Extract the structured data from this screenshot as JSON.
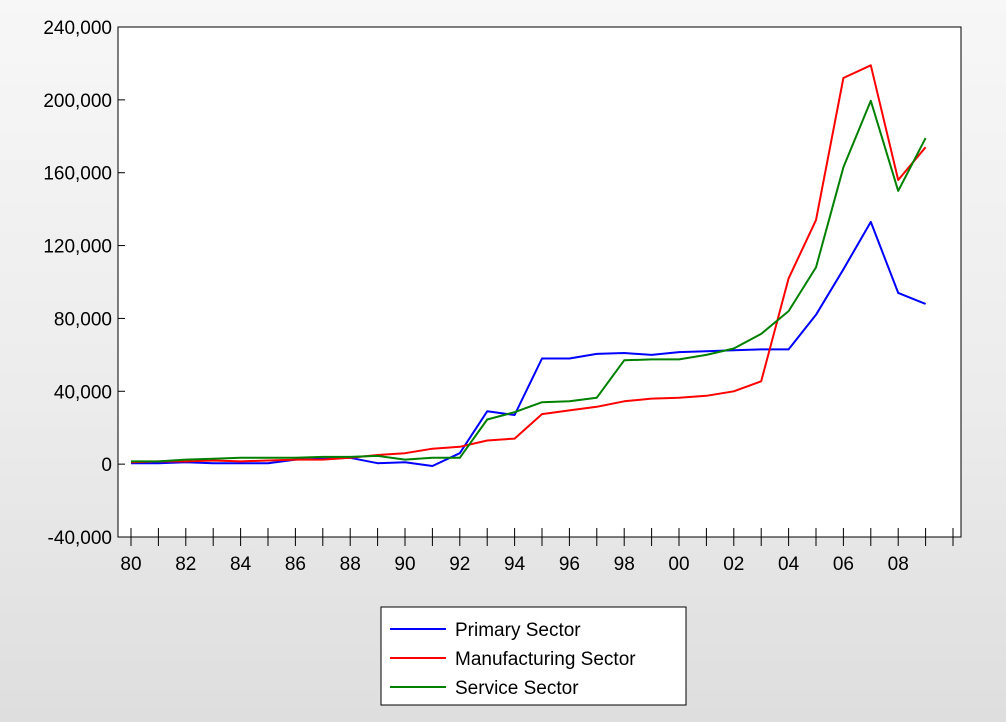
{
  "chart_data": {
    "type": "line",
    "x": [
      "80",
      "81",
      "82",
      "83",
      "84",
      "85",
      "86",
      "87",
      "88",
      "89",
      "90",
      "91",
      "92",
      "93",
      "94",
      "95",
      "96",
      "97",
      "98",
      "99",
      "00",
      "01",
      "02",
      "03",
      "04",
      "05",
      "06",
      "07",
      "08",
      "09"
    ],
    "x_tick_labels": [
      "80",
      "82",
      "84",
      "86",
      "88",
      "90",
      "92",
      "94",
      "96",
      "98",
      "00",
      "02",
      "04",
      "06",
      "08"
    ],
    "y_tick_labels": [
      "240,000",
      "200,000",
      "160,000",
      "120,000",
      "80,000",
      "40,000",
      "0",
      "-40,000"
    ],
    "ylim": [
      -40000,
      240000
    ],
    "series": [
      {
        "name": "Primary Sector",
        "color": "#0000ff",
        "values": [
          500,
          500,
          1000,
          500,
          500,
          500,
          2500,
          3000,
          3500,
          500,
          1000,
          -1000,
          6000,
          29000,
          27000,
          58000,
          58000,
          60500,
          61000,
          60000,
          61500,
          62000,
          62500,
          63000,
          63000,
          82000,
          107000,
          133000,
          94000,
          88000
        ]
      },
      {
        "name": "Manufacturing Sector",
        "color": "#ff0000",
        "values": [
          1000,
          1500,
          1500,
          2000,
          1500,
          2000,
          2500,
          2500,
          3500,
          5000,
          6000,
          8500,
          9500,
          13000,
          14000,
          27500,
          29500,
          31500,
          34500,
          36000,
          36500,
          37500,
          40000,
          45500,
          102000,
          134000,
          212000,
          219000,
          156000,
          174000
        ]
      },
      {
        "name": "Service Sector",
        "color": "#008000",
        "values": [
          1500,
          1500,
          2500,
          3000,
          3500,
          3500,
          3500,
          4000,
          4000,
          4500,
          2500,
          3500,
          3500,
          24500,
          28500,
          34000,
          34500,
          36500,
          57000,
          57500,
          57500,
          60000,
          63500,
          71500,
          84000,
          108000,
          163000,
          199500,
          150000,
          179000
        ]
      }
    ],
    "legend_placement": "bottom-center",
    "grid": false
  }
}
